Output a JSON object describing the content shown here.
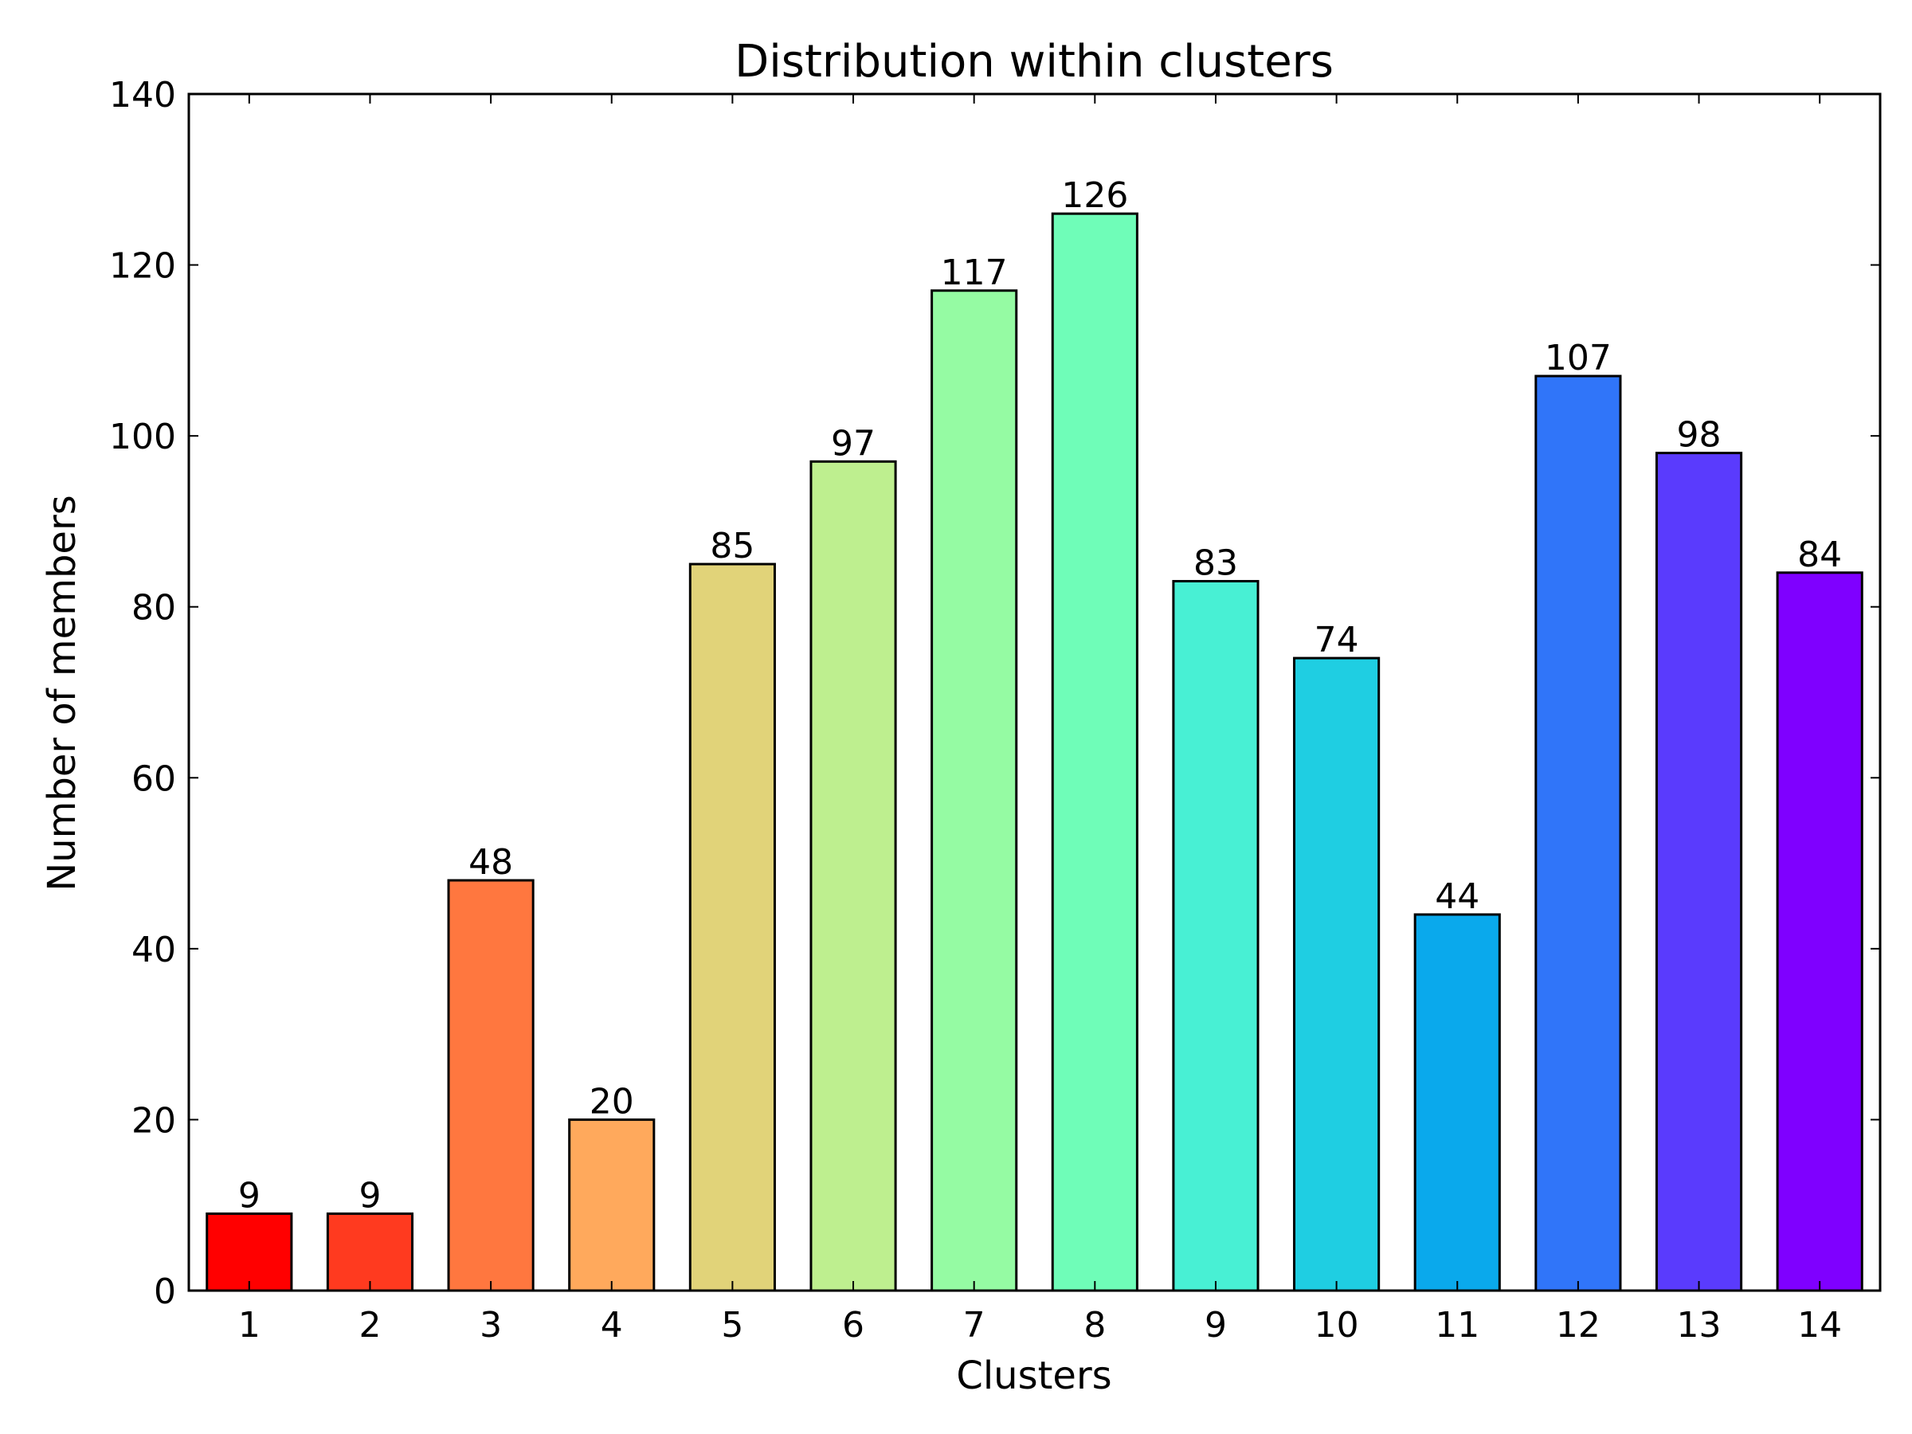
{
  "chart_data": {
    "type": "bar",
    "title": "Distribution within clusters",
    "xlabel": "Clusters",
    "ylabel": "Number of members",
    "categories": [
      "1",
      "2",
      "3",
      "4",
      "5",
      "6",
      "7",
      "8",
      "9",
      "10",
      "11",
      "12",
      "13",
      "14"
    ],
    "values": [
      9,
      9,
      48,
      20,
      85,
      97,
      117,
      126,
      83,
      74,
      44,
      107,
      98,
      84
    ],
    "colors": [
      "#ff0000",
      "#ff3a1f",
      "#ff773f",
      "#ffa95c",
      "#e1d379",
      "#beef8f",
      "#95fba3",
      "#6ffdb8",
      "#48f0d4",
      "#1fcee2",
      "#0aa9ec",
      "#3075f9",
      "#5a3bfd",
      "#7f00ff"
    ],
    "ylim": [
      0,
      140
    ],
    "yticks": [
      0,
      20,
      40,
      60,
      80,
      100,
      120,
      140
    ],
    "grid": false,
    "legend": "none"
  }
}
